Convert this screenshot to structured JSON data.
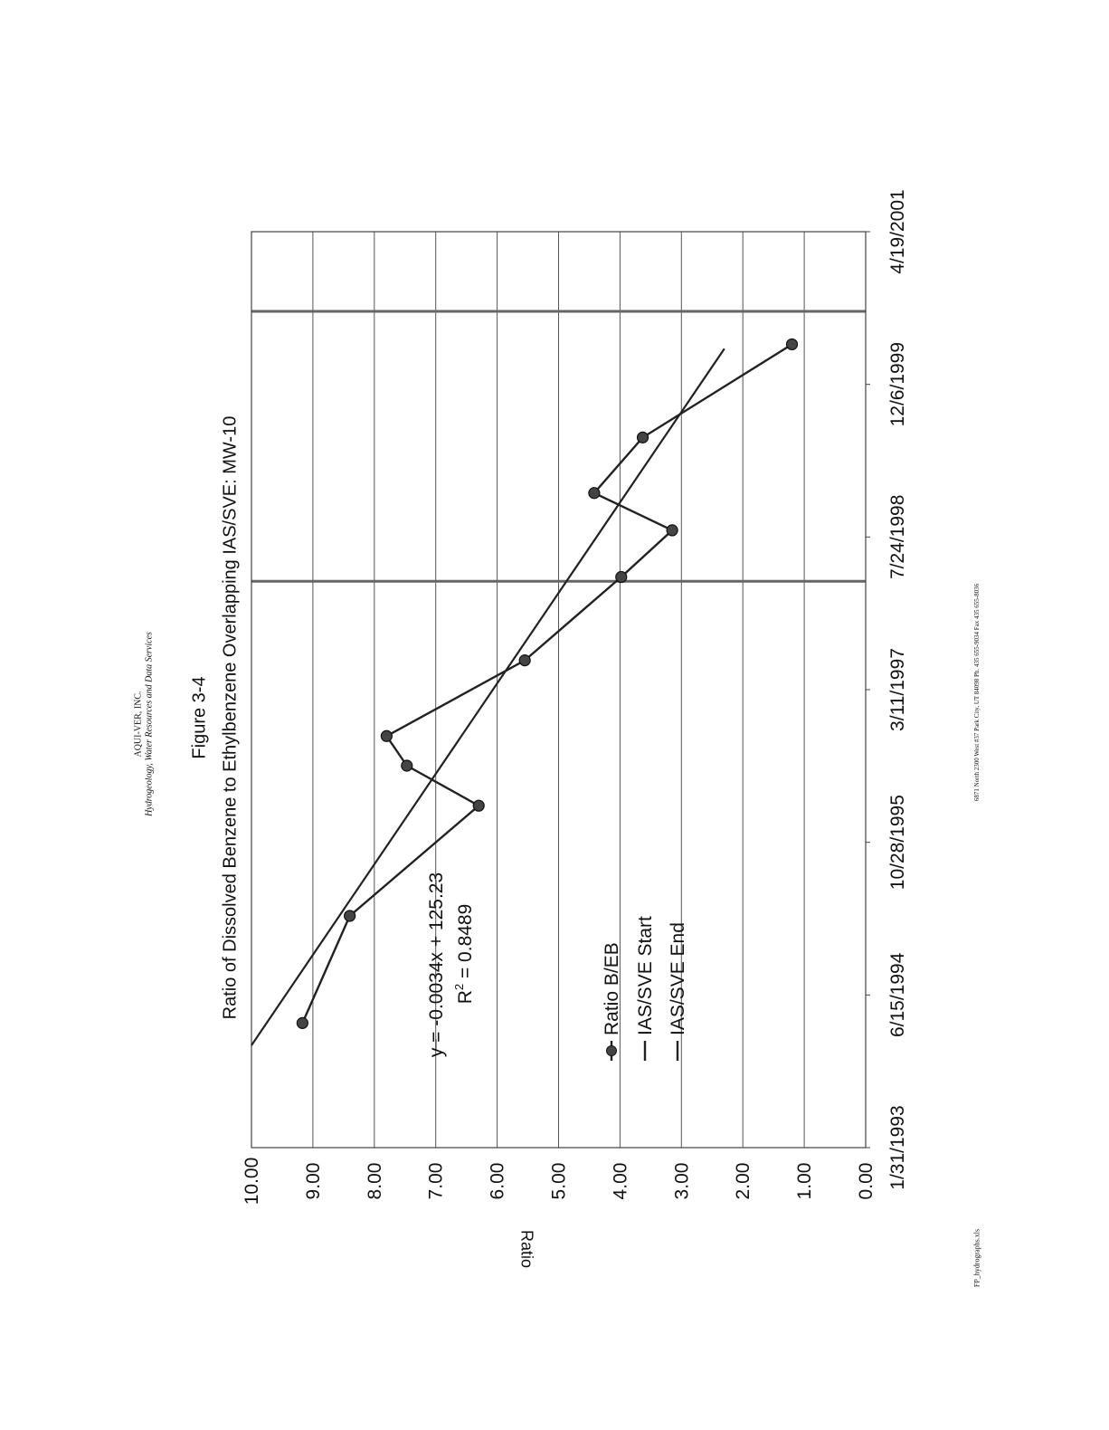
{
  "header": {
    "company": "AQUI-VER, INC.",
    "tagline": "Hydrogeology, Water Resources and Data Services"
  },
  "footer": {
    "address": "6871 North 2300 West #37 Park City, UT 84098   Ph. 435 655-9034   Fax 435 655-8036",
    "filename": "FP_hydrographs.xls"
  },
  "chart_data": {
    "type": "line",
    "figure_label": "Figure 3-4",
    "title": "Ratio of Dissolved Benzene to Ethylbenzene Overlapping IAS/SVE: MW-10",
    "ylabel": "Ratio",
    "xlabel": "",
    "ylim": [
      0,
      10
    ],
    "y_ticks": [
      "0.00",
      "1.00",
      "2.00",
      "3.00",
      "4.00",
      "5.00",
      "6.00",
      "7.00",
      "8.00",
      "9.00",
      "10.00"
    ],
    "x_ticks": [
      "1/31/1993",
      "6/15/1994",
      "10/28/1995",
      "3/11/1997",
      "7/24/1998",
      "12/6/1999",
      "4/19/2001"
    ],
    "grid": true,
    "orientation": "rotated 90° counter-clockwise on page",
    "series": [
      {
        "name": "Ratio B/EB",
        "marker": "circle",
        "points": [
          {
            "x": "1994-03-15",
            "y": 9.17
          },
          {
            "x": "1995-03-01",
            "y": 8.4
          },
          {
            "x": "1996-02-25",
            "y": 6.3
          },
          {
            "x": "1996-07-05",
            "y": 7.47
          },
          {
            "x": "1996-10-10",
            "y": 7.8
          },
          {
            "x": "1997-06-15",
            "y": 5.55
          },
          {
            "x": "1998-03-15",
            "y": 3.98
          },
          {
            "x": "1998-08-15",
            "y": 3.15
          },
          {
            "x": "1998-12-15",
            "y": 4.42
          },
          {
            "x": "1999-06-15",
            "y": 3.63
          },
          {
            "x": "2000-04-15",
            "y": 1.2
          }
        ]
      }
    ],
    "trendline": {
      "equation": "y = -0.0034x + 125.23",
      "r2_label": "R",
      "r2_sup": "2",
      "r2_value": " = 0.8489",
      "start": {
        "x": "1994-01-01",
        "y": 10.0
      },
      "end": {
        "x": "2000-04-01",
        "y": 2.3
      }
    },
    "vertical_markers": [
      {
        "name": "IAS/SVE Start",
        "x": "1998-03-01"
      },
      {
        "name": "IAS/SVE End",
        "x": "2000-08-01"
      }
    ],
    "legend": {
      "position": "bottom-center",
      "entries": [
        "Ratio B/EB",
        "IAS/SVE Start",
        "IAS/SVE End"
      ]
    }
  }
}
